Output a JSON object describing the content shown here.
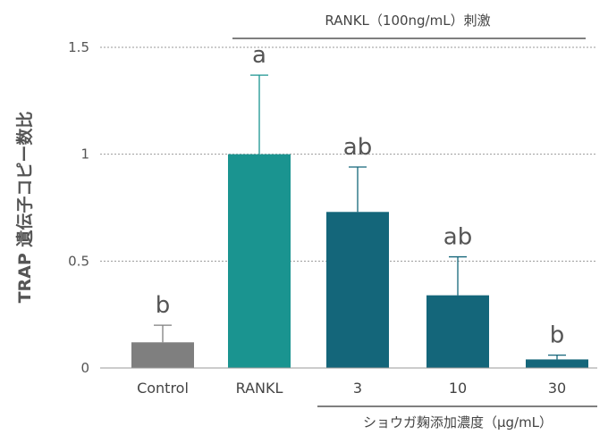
{
  "chart_data": {
    "type": "bar",
    "categories": [
      "Control",
      "RANKL",
      "3",
      "10",
      "30"
    ],
    "values": [
      0.12,
      1.0,
      0.73,
      0.34,
      0.04
    ],
    "errors": [
      0.08,
      0.37,
      0.21,
      0.18,
      0.02
    ],
    "significance": [
      "b",
      "a",
      "ab",
      "ab",
      "b"
    ],
    "colors": [
      "#7f7f7f",
      "#1a9490",
      "#14667a",
      "#14667a",
      "#14667a"
    ],
    "ylabel": "TRAP 遺伝子コピー数比",
    "ylim": [
      0,
      1.5
    ],
    "yticks": [
      {
        "value": 0,
        "label": "0"
      },
      {
        "value": 0.5,
        "label": "0.5"
      },
      {
        "value": 1,
        "label": "1"
      },
      {
        "value": 1.5,
        "label": "1.5"
      }
    ],
    "grid": true,
    "brackets": {
      "top": "RANKL（100ng/mL）刺激",
      "bottom": "ショウガ麹添加濃度（μg/mL）"
    }
  }
}
